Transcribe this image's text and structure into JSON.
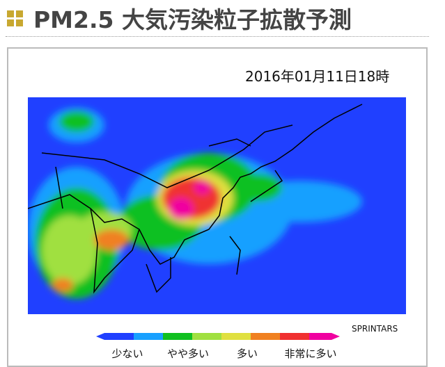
{
  "header": {
    "title": "PM2.5 大気汚染粒子拡散予測"
  },
  "map": {
    "timestamp": "2016年01月11日18時",
    "credit": "SPRINTARS"
  },
  "legend": {
    "labels": [
      "少ない",
      "やや多い",
      "多い",
      "非常に多い"
    ]
  }
}
